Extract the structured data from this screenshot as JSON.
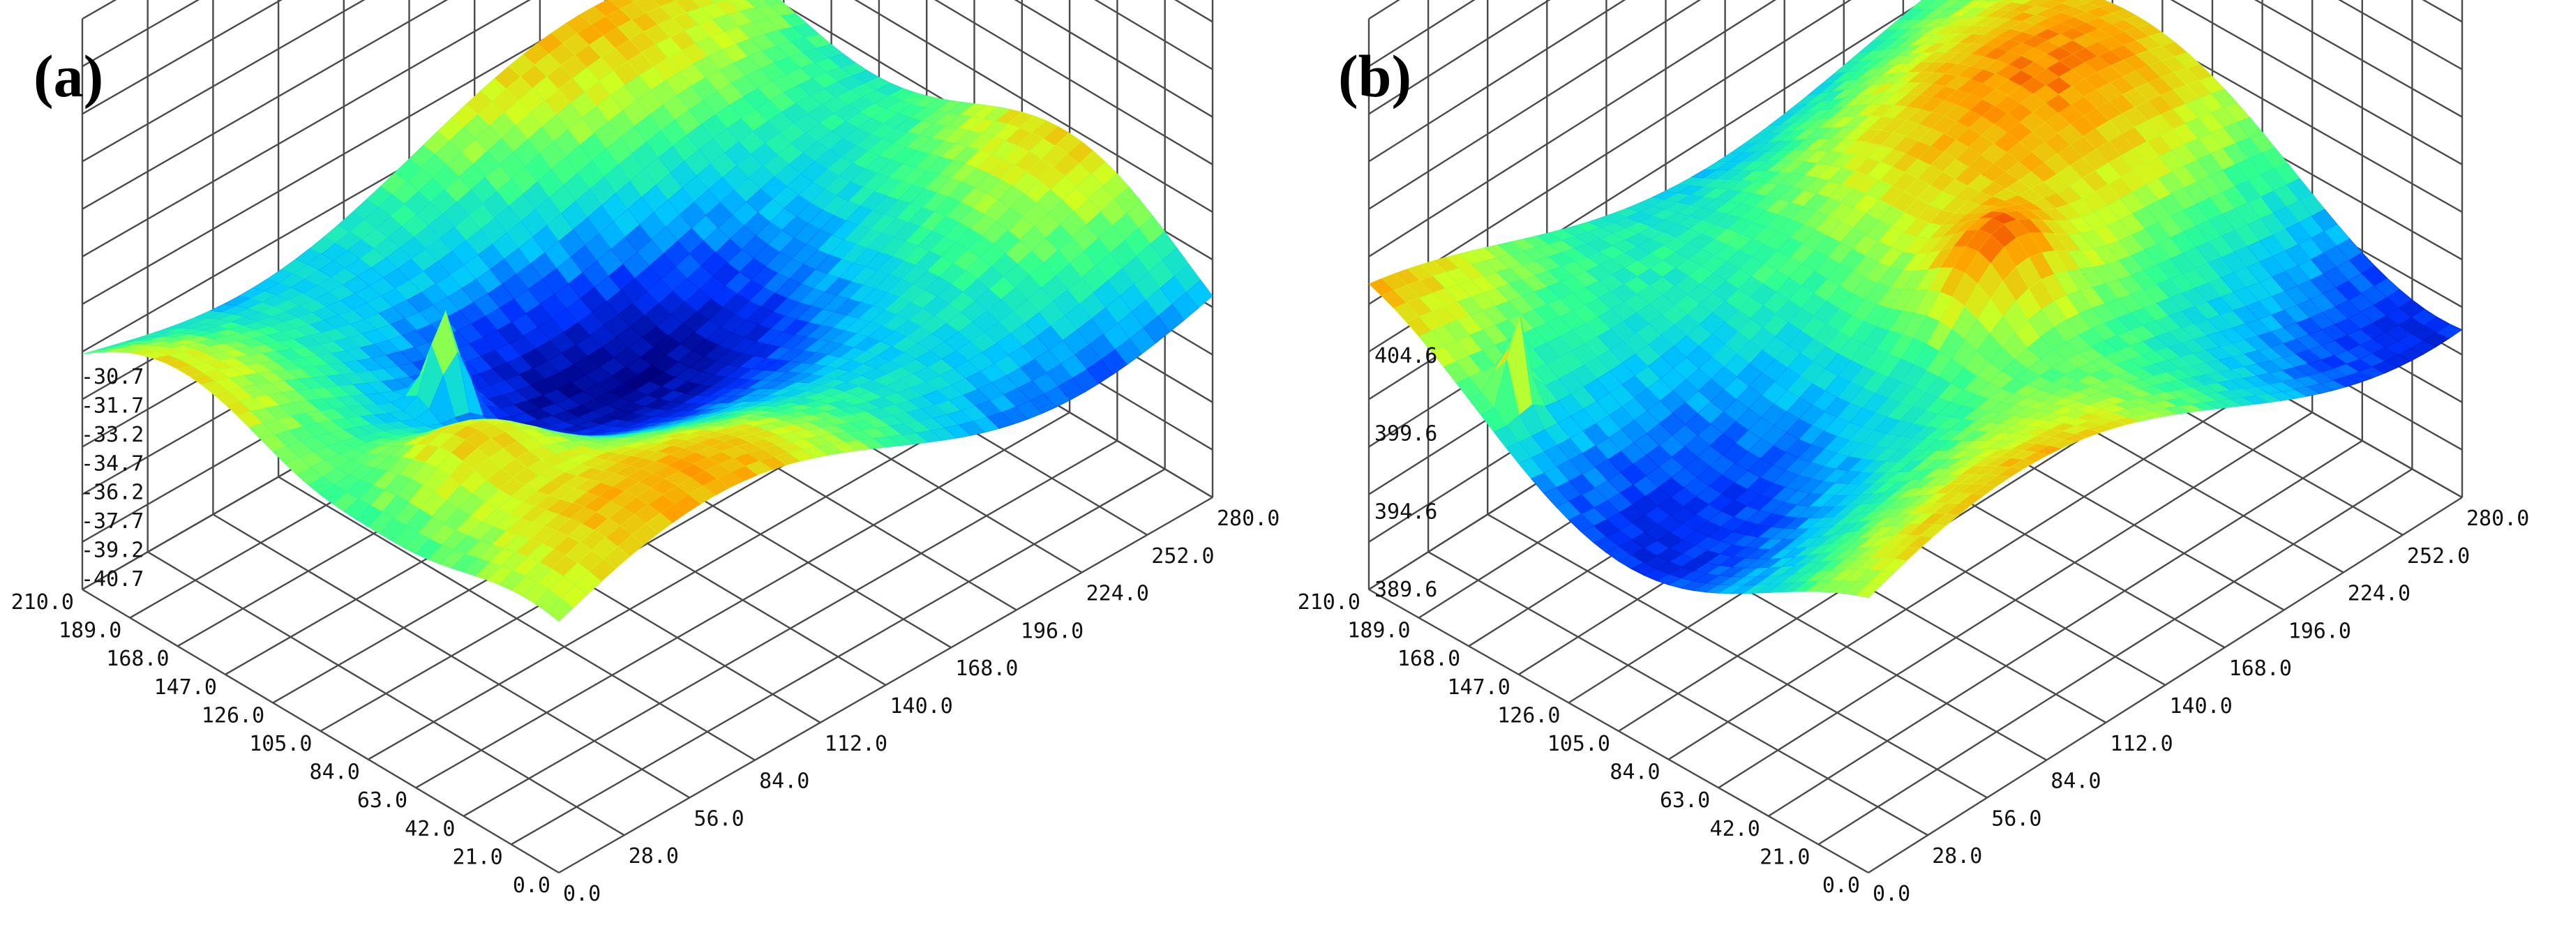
{
  "chart_data": [
    {
      "type": "surface",
      "panel_label": "(a)",
      "x_ticks": [
        "0.0",
        "28.0",
        "56.0",
        "84.0",
        "112.0",
        "140.0",
        "168.0",
        "196.0",
        "224.0",
        "252.0",
        "280.0"
      ],
      "y_ticks": [
        "0.0",
        "21.0",
        "42.0",
        "63.0",
        "84.0",
        "105.0",
        "126.0",
        "147.0",
        "168.0",
        "189.0",
        "210.0"
      ],
      "z_ticks": [
        "-40.7",
        "-39.2",
        "-37.7",
        "-36.2",
        "-34.7",
        "-33.2",
        "-31.7",
        "-30.7"
      ],
      "z_range": [
        -40.7,
        -30.7
      ],
      "colormap": [
        "#00007f",
        "#0033ff",
        "#00c8ff",
        "#30ff90",
        "#d0ff20",
        "#ffa000",
        "#e60000"
      ]
    },
    {
      "type": "surface",
      "panel_label": "(b)",
      "x_ticks": [
        "0.0",
        "28.0",
        "56.0",
        "84.0",
        "112.0",
        "140.0",
        "168.0",
        "196.0",
        "224.0",
        "252.0",
        "280.0"
      ],
      "y_ticks": [
        "0.0",
        "21.0",
        "42.0",
        "63.0",
        "84.0",
        "105.0",
        "126.0",
        "147.0",
        "168.0",
        "189.0",
        "210.0"
      ],
      "z_ticks": [
        "389.6",
        "394.6",
        "399.6",
        "404.6"
      ],
      "z_range": [
        389.6,
        404.6
      ],
      "colormap": [
        "#00007f",
        "#0033ff",
        "#00c8ff",
        "#30ff90",
        "#d0ff20",
        "#ffa000",
        "#e60000"
      ]
    }
  ]
}
